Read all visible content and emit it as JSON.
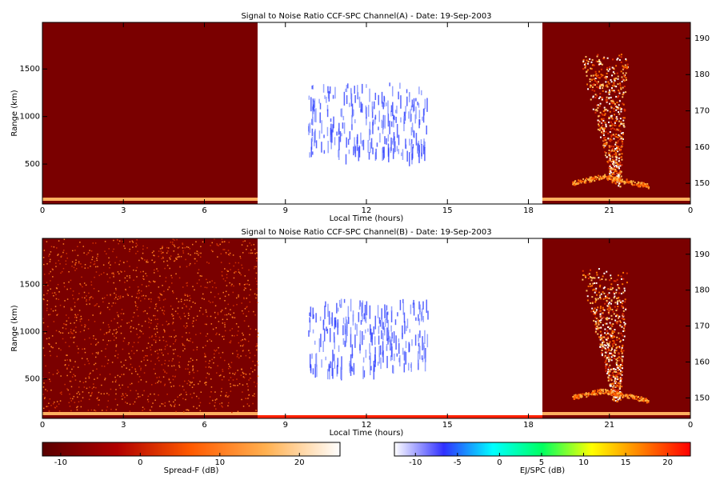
{
  "chart_data": [
    {
      "type": "heatmap",
      "title": "Signal to Noise Ratio CCF-SPC Channel(A) - Date: 19-Sep-2003",
      "x_label": "Local Time (hours)",
      "y_label": "Range (km)",
      "xlim": [
        0,
        24
      ],
      "xticks": [
        0,
        3,
        6,
        9,
        12,
        15,
        18,
        21,
        {
          "value": 24,
          "label": "0"
        }
      ],
      "ylim": [
        80,
        1990
      ],
      "yticks": [
        500,
        1000,
        1500
      ],
      "y2lim": [
        144.3,
        194.4
      ],
      "y2ticks": [
        150,
        160,
        170,
        180,
        190
      ]
    },
    {
      "type": "heatmap",
      "title": "Signal to Noise Ratio CCF-SPC Channel(B) - Date: 19-Sep-2003",
      "x_label": "Local Time (hours)",
      "y_label": "Range (km)",
      "xlim": [
        0,
        24
      ],
      "xticks": [
        0,
        3,
        6,
        9,
        12,
        15,
        18,
        21,
        {
          "value": 24,
          "label": "0"
        }
      ],
      "ylim": [
        80,
        1990
      ],
      "yticks": [
        500,
        1000,
        1500
      ],
      "y2lim": [
        144.3,
        194.4
      ],
      "y2ticks": [
        150,
        160,
        170,
        180,
        190
      ]
    }
  ],
  "colorbars": [
    {
      "label": "Spread-F (dB)",
      "lim": [
        -12.3,
        25.1
      ],
      "ticks": [
        -10,
        0,
        10,
        20
      ],
      "colors": [
        "#5a0000",
        "#b00000",
        "#ff5a00",
        "#ffb050",
        "#ffffff"
      ]
    },
    {
      "label": "EJ/SPC (dB)",
      "lim": [
        -12.5,
        22.7
      ],
      "ticks": [
        -10,
        -5,
        0,
        5,
        10,
        15,
        20
      ],
      "colors": [
        "#ffffff",
        "#3030ff",
        "#00ffff",
        "#00ff60",
        "#ffff00",
        "#ff8000",
        "#ff0000"
      ]
    }
  ]
}
